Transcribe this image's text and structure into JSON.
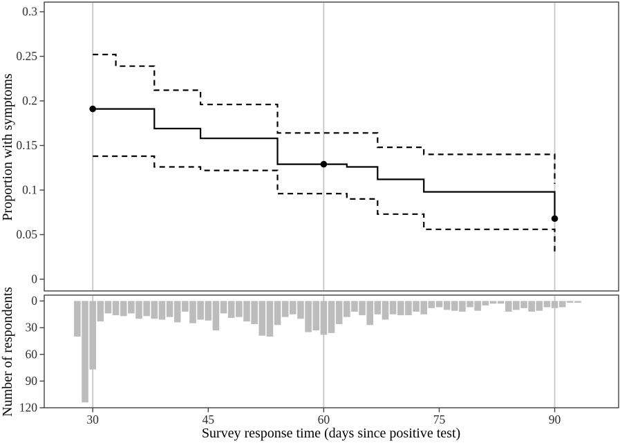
{
  "figure_titles": {
    "x_axis": "Survey response time (days since positive test)",
    "y_axis_top": "Proportion with symptoms",
    "y_axis_bottom": "Number of respondents"
  },
  "colors": {
    "line": "#000000",
    "marker": "#000000",
    "bar_fill": "#bcbcbc",
    "gridline": "#c6c6c6",
    "panel_border": "#3f3f3f",
    "tick_text": "#2e2e2e",
    "axis_title_text": "#000000",
    "background": "#ffffff"
  },
  "chart_data": [
    {
      "type": "line",
      "subtype": "step-survival-curve-with-ci",
      "panel": "top",
      "title": "",
      "xlabel": "Survey response time (days since positive test)",
      "ylabel": "Proportion with symptoms",
      "ylim": [
        0,
        0.3
      ],
      "yticks": [
        0,
        0.05,
        0.1,
        0.15,
        0.2,
        0.25,
        0.3
      ],
      "ytick_labels": [
        "0",
        "0.05",
        "0.1",
        "0.15",
        "0.2",
        "0.25",
        "0.3"
      ],
      "xlim": [
        23.7,
        98.3
      ],
      "xticks": [
        30,
        45,
        60,
        75,
        90
      ],
      "xtick_labels": [
        "30",
        "45",
        "60",
        "75",
        "90"
      ],
      "x_gridlines": [
        30,
        60,
        90
      ],
      "grid": "vertical-major-only",
      "legend": "none",
      "series": [
        {
          "name": "estimate",
          "style": "solid-step",
          "points": [
            [
              30,
              0.191
            ],
            [
              38,
              0.169
            ],
            [
              44,
              0.158
            ],
            [
              54,
              0.129
            ],
            [
              63,
              0.126
            ],
            [
              67,
              0.112
            ],
            [
              73,
              0.098
            ],
            [
              90,
              0.068
            ]
          ]
        },
        {
          "name": "ci-upper",
          "style": "dashed-step",
          "points": [
            [
              30,
              0.252
            ],
            [
              33,
              0.239
            ],
            [
              38,
              0.212
            ],
            [
              44,
              0.196
            ],
            [
              54,
              0.164
            ],
            [
              67,
              0.148
            ],
            [
              73,
              0.14
            ],
            [
              90,
              0.107
            ]
          ]
        },
        {
          "name": "ci-lower",
          "style": "dashed-step",
          "points": [
            [
              30,
              0.138
            ],
            [
              38,
              0.126
            ],
            [
              44,
              0.122
            ],
            [
              54,
              0.096
            ],
            [
              63,
              0.09
            ],
            [
              67,
              0.073
            ],
            [
              73,
              0.056
            ],
            [
              90,
              0.031
            ]
          ]
        }
      ],
      "markers": {
        "name": "estimate-points",
        "points": [
          [
            30,
            0.191
          ],
          [
            60,
            0.129
          ],
          [
            90,
            0.068
          ]
        ]
      }
    },
    {
      "type": "bar",
      "panel": "bottom",
      "title": "",
      "xlabel": "Survey response time (days since positive test)",
      "ylabel": "Number of respondents",
      "ylim": [
        0,
        120
      ],
      "y_inverted": true,
      "yticks": [
        0,
        30,
        60,
        90,
        120
      ],
      "ytick_labels": [
        "0",
        "30",
        "60",
        "90",
        "120"
      ],
      "xlim": [
        23.7,
        98.3
      ],
      "xticks": [
        30,
        45,
        60,
        75,
        90
      ],
      "xtick_labels": [
        "30",
        "45",
        "60",
        "75",
        "90"
      ],
      "x_gridlines": [
        30,
        60,
        90
      ],
      "days": [
        28,
        29,
        30,
        31,
        32,
        33,
        34,
        35,
        36,
        37,
        38,
        39,
        40,
        41,
        42,
        43,
        44,
        45,
        46,
        47,
        48,
        49,
        50,
        51,
        52,
        53,
        54,
        55,
        56,
        57,
        58,
        59,
        60,
        61,
        62,
        63,
        64,
        65,
        66,
        67,
        68,
        69,
        70,
        71,
        72,
        73,
        74,
        75,
        76,
        77,
        78,
        79,
        80,
        81,
        82,
        83,
        84,
        85,
        86,
        87,
        88,
        89,
        90,
        91,
        92,
        93
      ],
      "values": [
        40,
        114,
        77,
        23,
        14,
        16,
        17,
        14,
        20,
        17,
        20,
        21,
        18,
        24,
        12,
        25,
        21,
        22,
        33,
        14,
        19,
        18,
        23,
        26,
        39,
        40,
        27,
        18,
        15,
        20,
        35,
        33,
        38,
        36,
        26,
        18,
        12,
        16,
        27,
        15,
        21,
        15,
        16,
        16,
        12,
        15,
        8,
        7,
        10,
        11,
        12,
        7,
        11,
        5,
        3,
        3,
        12,
        10,
        8,
        12,
        11,
        7,
        8,
        7,
        2,
        2
      ]
    }
  ]
}
